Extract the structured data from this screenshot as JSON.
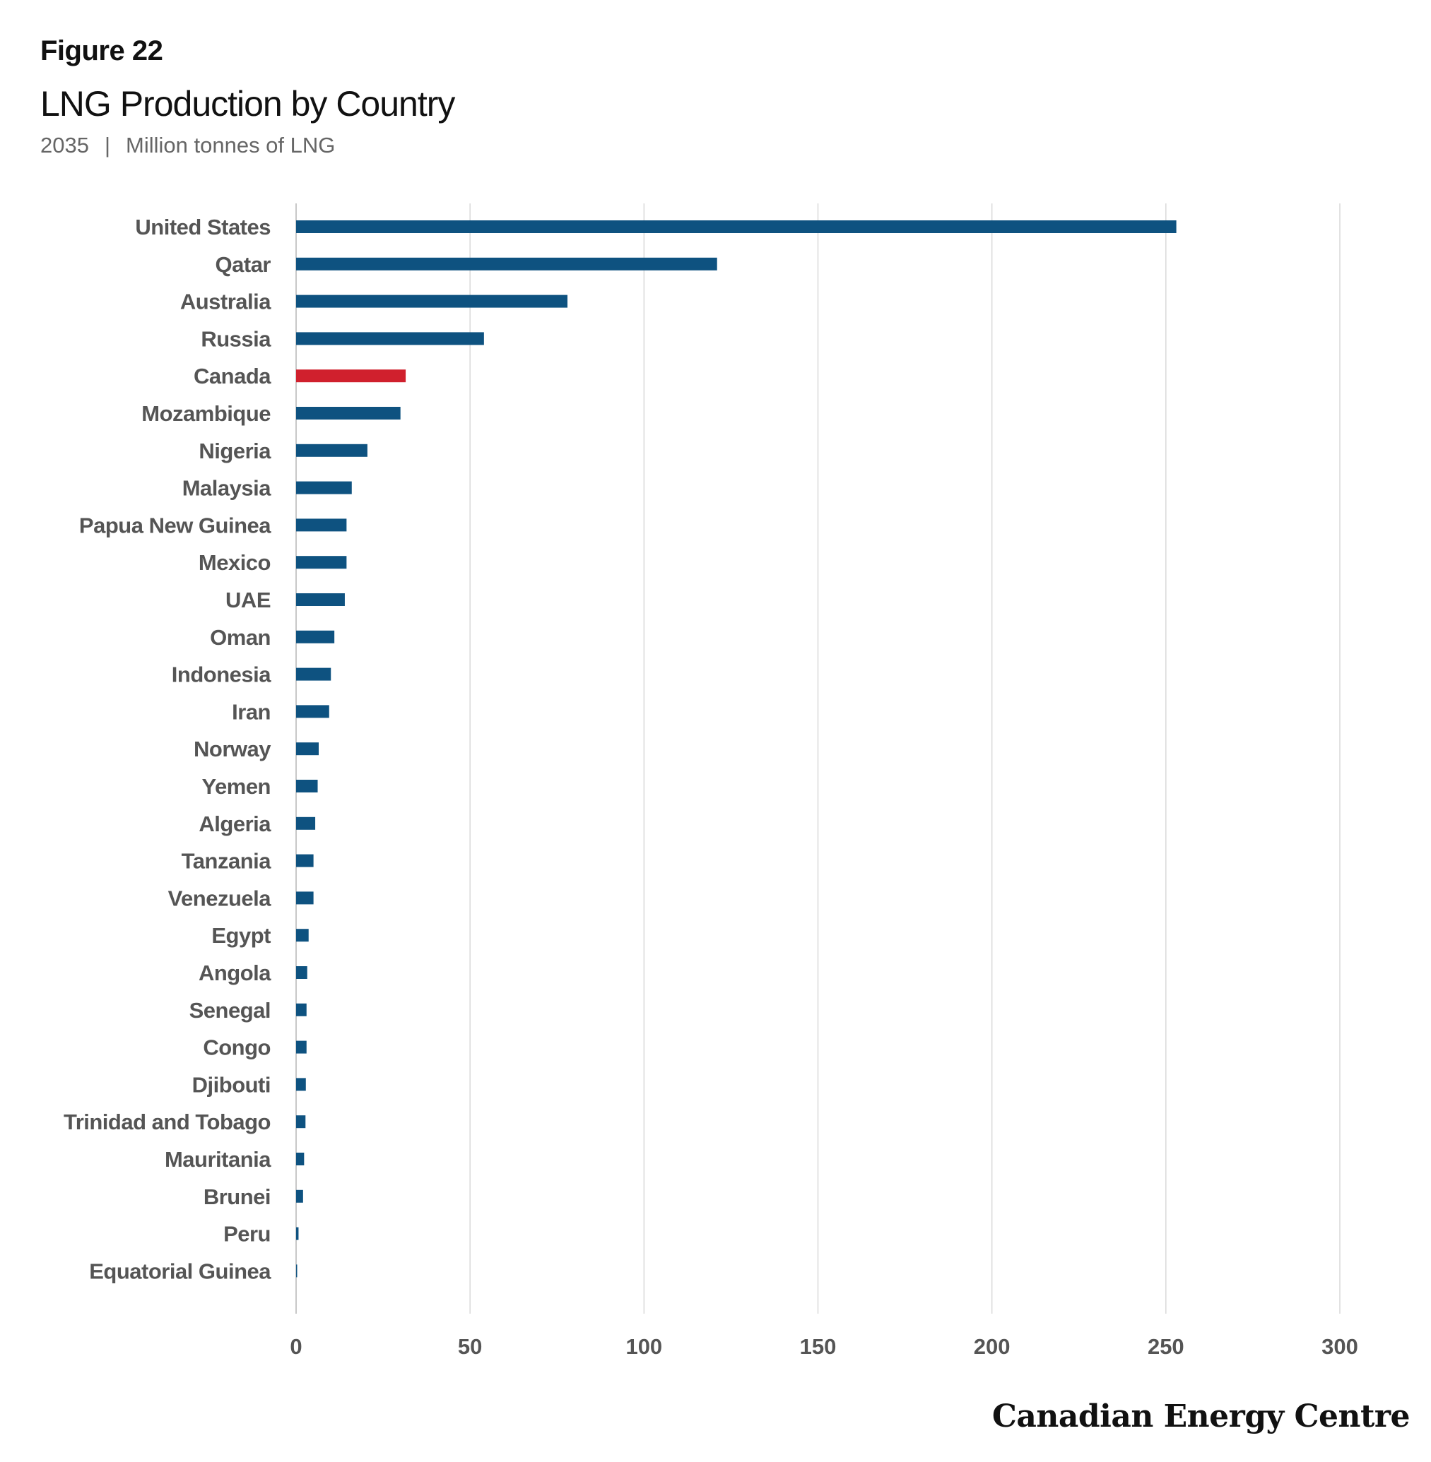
{
  "figure_label": "Figure 22",
  "brand": "Canadian Energy Centre",
  "colors": {
    "bar": "#0e5280",
    "highlight": "#d0202d",
    "grid": "#d9d9d9",
    "axis": "#c8c8c8",
    "label": "#555555"
  },
  "chart_data": {
    "type": "bar",
    "orientation": "horizontal",
    "title": "LNG Production by Country",
    "subtitle_year": "2035",
    "subtitle_unit": "Million tonnes of LNG",
    "categories": [
      "United States",
      "Qatar",
      "Australia",
      "Russia",
      "Canada",
      "Mozambique",
      "Nigeria",
      "Malaysia",
      "Papua New Guinea",
      "Mexico",
      "UAE",
      "Oman",
      "Indonesia",
      "Iran",
      "Norway",
      "Yemen",
      "Algeria",
      "Tanzania",
      "Venezuela",
      "Egypt",
      "Angola",
      "Senegal",
      "Congo",
      "Djibouti",
      "Trinidad and Tobago",
      "Mauritania",
      "Brunei",
      "Peru",
      "Equatorial Guinea"
    ],
    "values": [
      253,
      121,
      78,
      54,
      31.5,
      30,
      20.5,
      16,
      14.5,
      14.5,
      14,
      11,
      10,
      9.5,
      6.5,
      6.2,
      5.5,
      5,
      5,
      3.6,
      3.2,
      3,
      3,
      2.8,
      2.7,
      2.3,
      2,
      0.7,
      0.3
    ],
    "highlight_category": "Canada",
    "xlim": [
      0,
      300
    ],
    "xticks": [
      0,
      50,
      100,
      150,
      200,
      250,
      300
    ],
    "grid": true,
    "legend": "none",
    "xlabel": "",
    "ylabel": ""
  }
}
